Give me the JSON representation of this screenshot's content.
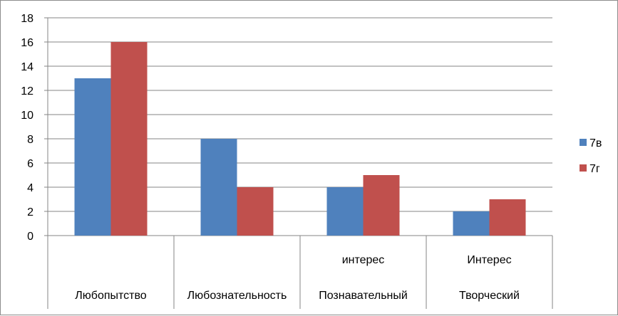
{
  "chart_data": {
    "type": "bar",
    "categories": [
      [
        "Любопытство"
      ],
      [
        "Любознательность"
      ],
      [
        "интерес",
        "Познавательный"
      ],
      [
        "Интерес",
        "Творческий"
      ]
    ],
    "series": [
      {
        "name": "7в",
        "color": "#4f81bd",
        "values": [
          13,
          8,
          4,
          2
        ]
      },
      {
        "name": "7г",
        "color": "#c0504d",
        "values": [
          16,
          4,
          5,
          3
        ]
      }
    ],
    "ylim": [
      0,
      18
    ],
    "yticks": [
      0,
      2,
      4,
      6,
      8,
      10,
      12,
      14,
      16,
      18
    ],
    "grid": true,
    "legend_position": "right"
  }
}
